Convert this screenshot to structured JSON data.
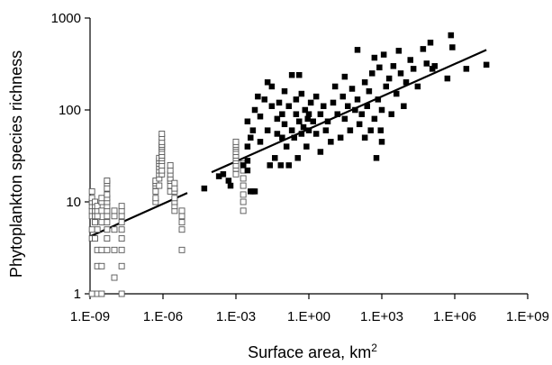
{
  "chart_data": {
    "type": "scatter",
    "xlabel": "Surface area, km",
    "xlabel_superscript": "2",
    "ylabel": "Phytoplankton species richness",
    "x_scale": "log",
    "y_scale": "log",
    "xlim": [
      1e-09,
      1000000000.0
    ],
    "ylim": [
      1,
      1000
    ],
    "x_ticks": [
      1e-09,
      1e-06,
      0.001,
      1,
      1000.0,
      1000000.0,
      1000000000.0
    ],
    "x_tick_labels": [
      "1.E-09",
      "1.E-06",
      "1.E-03",
      "1.E+00",
      "1.E+03",
      "1.E+06",
      "1.E+09"
    ],
    "y_ticks": [
      1,
      10,
      100,
      1000
    ],
    "y_tick_labels": [
      "1",
      "10",
      "100",
      "1000"
    ],
    "grid": false,
    "legend": "none",
    "series": [
      {
        "marker": "open-square",
        "points": [
          [
            1.2e-09,
            1
          ],
          [
            1.2e-09,
            4
          ],
          [
            1.2e-09,
            5
          ],
          [
            1.2e-09,
            7
          ],
          [
            1.2e-09,
            8
          ],
          [
            1.2e-09,
            9
          ],
          [
            1.2e-09,
            10
          ],
          [
            1.2e-09,
            11
          ],
          [
            1.2e-09,
            13
          ],
          [
            1.6e-09,
            4
          ],
          [
            1.6e-09,
            6
          ],
          [
            1.6e-09,
            7
          ],
          [
            1.6e-09,
            8
          ],
          [
            1.6e-09,
            9
          ],
          [
            1.6e-09,
            10
          ],
          [
            2e-09,
            1
          ],
          [
            2e-09,
            2
          ],
          [
            2e-09,
            3
          ],
          [
            2e-09,
            5
          ],
          [
            2e-09,
            7
          ],
          [
            2e-09,
            8
          ],
          [
            2e-09,
            9
          ],
          [
            3e-09,
            1
          ],
          [
            3e-09,
            2
          ],
          [
            3e-09,
            3
          ],
          [
            3e-09,
            6
          ],
          [
            3e-09,
            8
          ],
          [
            3e-09,
            10
          ],
          [
            3e-09,
            11
          ],
          [
            5e-09,
            3
          ],
          [
            5e-09,
            4
          ],
          [
            5e-09,
            5
          ],
          [
            5e-09,
            6
          ],
          [
            5e-09,
            7
          ],
          [
            5e-09,
            8
          ],
          [
            5e-09,
            9
          ],
          [
            5e-09,
            10
          ],
          [
            5e-09,
            11
          ],
          [
            5e-09,
            12
          ],
          [
            5e-09,
            14
          ],
          [
            5e-09,
            16
          ],
          [
            5e-09,
            17
          ],
          [
            1e-08,
            1.5
          ],
          [
            1e-08,
            3
          ],
          [
            1e-08,
            5
          ],
          [
            1e-08,
            7
          ],
          [
            1e-08,
            8
          ],
          [
            2e-08,
            1
          ],
          [
            2e-08,
            2
          ],
          [
            2e-08,
            3
          ],
          [
            2e-08,
            4
          ],
          [
            2e-08,
            5
          ],
          [
            2e-08,
            6
          ],
          [
            2e-08,
            7
          ],
          [
            2e-08,
            8
          ],
          [
            2e-08,
            9
          ],
          [
            5e-07,
            10
          ],
          [
            5e-07,
            11
          ],
          [
            5e-07,
            13
          ],
          [
            5e-07,
            15
          ],
          [
            5e-07,
            16
          ],
          [
            5e-07,
            17
          ],
          [
            7e-07,
            15
          ],
          [
            7e-07,
            18
          ],
          [
            7e-07,
            20
          ],
          [
            7e-07,
            22
          ],
          [
            7e-07,
            24
          ],
          [
            7e-07,
            26
          ],
          [
            7e-07,
            28
          ],
          [
            7e-07,
            30
          ],
          [
            9e-07,
            20
          ],
          [
            9e-07,
            22
          ],
          [
            9e-07,
            25
          ],
          [
            9e-07,
            28
          ],
          [
            9e-07,
            30
          ],
          [
            9e-07,
            32
          ],
          [
            9e-07,
            35
          ],
          [
            9e-07,
            38
          ],
          [
            9e-07,
            40
          ],
          [
            9e-07,
            42
          ],
          [
            9e-07,
            45
          ],
          [
            9e-07,
            50
          ],
          [
            9e-07,
            55
          ],
          [
            2e-06,
            13
          ],
          [
            2e-06,
            15
          ],
          [
            2e-06,
            17
          ],
          [
            2e-06,
            18
          ],
          [
            2e-06,
            20
          ],
          [
            2e-06,
            22
          ],
          [
            2e-06,
            25
          ],
          [
            3e-06,
            8
          ],
          [
            3e-06,
            9
          ],
          [
            3e-06,
            10
          ],
          [
            3e-06,
            11
          ],
          [
            3e-06,
            13
          ],
          [
            3e-06,
            14
          ],
          [
            3e-06,
            16
          ],
          [
            6e-06,
            3
          ],
          [
            6e-06,
            5
          ],
          [
            6e-06,
            6
          ],
          [
            6e-06,
            7
          ],
          [
            6e-06,
            8
          ],
          [
            0.001,
            20
          ],
          [
            0.001,
            23
          ],
          [
            0.001,
            25
          ],
          [
            0.001,
            28
          ],
          [
            0.001,
            30
          ],
          [
            0.001,
            32
          ],
          [
            0.001,
            35
          ],
          [
            0.001,
            38
          ],
          [
            0.001,
            40
          ],
          [
            0.001,
            42
          ],
          [
            0.001,
            45
          ],
          [
            0.002,
            8
          ],
          [
            0.002,
            10
          ],
          [
            0.002,
            12
          ],
          [
            0.002,
            15
          ],
          [
            0.002,
            18
          ],
          [
            0.002,
            22
          ],
          [
            0.002,
            26
          ]
        ]
      },
      {
        "marker": "filled-square",
        "points": [
          [
            5e-05,
            14
          ],
          [
            0.0002,
            19
          ],
          [
            0.0003,
            20
          ],
          [
            0.0005,
            17
          ],
          [
            0.0006,
            15
          ],
          [
            0.002,
            25
          ],
          [
            0.003,
            28
          ],
          [
            0.003,
            22
          ],
          [
            0.004,
            13
          ],
          [
            0.005,
            13
          ],
          [
            0.006,
            13
          ],
          [
            0.003,
            40
          ],
          [
            0.004,
            50
          ],
          [
            0.003,
            75
          ],
          [
            0.005,
            60
          ],
          [
            0.006,
            100
          ],
          [
            0.008,
            140
          ],
          [
            0.01,
            85
          ],
          [
            0.01,
            45
          ],
          [
            0.015,
            130
          ],
          [
            0.02,
            200
          ],
          [
            0.02,
            60
          ],
          [
            0.025,
            25
          ],
          [
            0.03,
            180
          ],
          [
            0.03,
            110
          ],
          [
            0.04,
            30
          ],
          [
            0.05,
            55
          ],
          [
            0.05,
            80
          ],
          [
            0.06,
            120
          ],
          [
            0.07,
            25
          ],
          [
            0.08,
            90
          ],
          [
            0.08,
            50
          ],
          [
            0.1,
            160
          ],
          [
            0.1,
            70
          ],
          [
            0.12,
            40
          ],
          [
            0.15,
            25
          ],
          [
            0.15,
            110
          ],
          [
            0.2,
            240
          ],
          [
            0.2,
            60
          ],
          [
            0.25,
            50
          ],
          [
            0.3,
            90
          ],
          [
            0.3,
            130
          ],
          [
            0.35,
            30
          ],
          [
            0.4,
            240
          ],
          [
            0.4,
            75
          ],
          [
            0.5,
            55
          ],
          [
            0.5,
            150
          ],
          [
            0.6,
            65
          ],
          [
            0.7,
            100
          ],
          [
            0.8,
            40
          ],
          [
            0.9,
            80
          ],
          [
            1,
            90
          ],
          [
            1,
            60
          ],
          [
            1.2,
            120
          ],
          [
            1.5,
            75
          ],
          [
            2,
            140
          ],
          [
            2,
            55
          ],
          [
            3,
            35
          ],
          [
            3,
            90
          ],
          [
            4,
            110
          ],
          [
            5,
            60
          ],
          [
            6,
            75
          ],
          [
            8,
            45
          ],
          [
            10,
            120
          ],
          [
            12,
            180
          ],
          [
            15,
            90
          ],
          [
            20,
            50
          ],
          [
            25,
            140
          ],
          [
            30,
            230
          ],
          [
            30,
            80
          ],
          [
            40,
            110
          ],
          [
            50,
            60
          ],
          [
            60,
            170
          ],
          [
            80,
            100
          ],
          [
            100,
            130
          ],
          [
            100,
            450
          ],
          [
            120,
            70
          ],
          [
            150,
            90
          ],
          [
            200,
            200
          ],
          [
            200,
            50
          ],
          [
            250,
            110
          ],
          [
            300,
            160
          ],
          [
            350,
            60
          ],
          [
            400,
            250
          ],
          [
            500,
            80
          ],
          [
            500,
            370
          ],
          [
            600,
            30
          ],
          [
            700,
            130
          ],
          [
            800,
            290
          ],
          [
            900,
            60
          ],
          [
            1000,
            100
          ],
          [
            1000,
            45
          ],
          [
            1200,
            400
          ],
          [
            1500,
            180
          ],
          [
            2000,
            220
          ],
          [
            2500,
            90
          ],
          [
            3000,
            300
          ],
          [
            4000,
            150
          ],
          [
            5000,
            440
          ],
          [
            6000,
            250
          ],
          [
            8000,
            110
          ],
          [
            10000,
            200
          ],
          [
            15000,
            350
          ],
          [
            20000,
            280
          ],
          [
            30000,
            180
          ],
          [
            50000,
            460
          ],
          [
            70000,
            320
          ],
          [
            100000.0,
            540
          ],
          [
            120000.0,
            280
          ],
          [
            150000.0,
            300
          ],
          [
            500000.0,
            220
          ],
          [
            700000.0,
            650
          ],
          [
            800000.0,
            480
          ],
          [
            3000000.0,
            280
          ],
          [
            20000000.0,
            310
          ]
        ]
      }
    ],
    "fit_lines": [
      {
        "style": "solid",
        "x": [
          1e-09,
          1e-05
        ],
        "y": [
          4.2,
          12.5
        ]
      },
      {
        "style": "solid",
        "x": [
          0.0001,
          20000000.0
        ],
        "y": [
          21,
          450
        ]
      }
    ]
  }
}
